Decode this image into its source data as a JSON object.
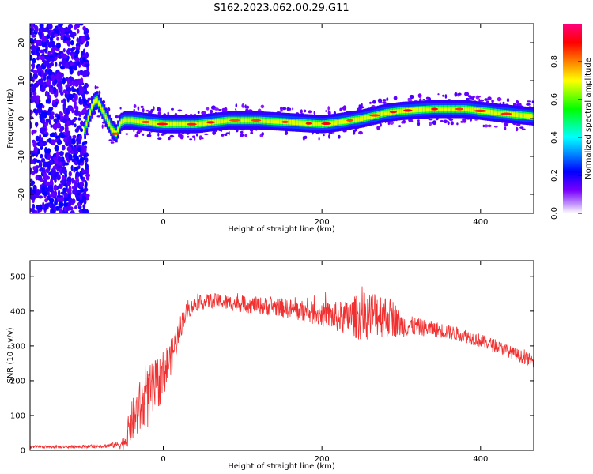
{
  "figure": {
    "title": "S162.2023.062.00.29.G11"
  },
  "chart_data": [
    {
      "type": "heatmap",
      "title": "S162.2023.062.00.29.G11",
      "xlabel": "Height of straight line (km)",
      "ylabel": "Frequency (Hz)",
      "xlim": [
        -168,
        467
      ],
      "ylim": [
        -25,
        25
      ],
      "xticks": [
        0,
        200,
        400
      ],
      "yticks": [
        -20,
        -10,
        0,
        10,
        20
      ],
      "colorbar": {
        "label": "Normalized spectral amplitude",
        "ticks": [
          0.0,
          0.2,
          0.4,
          0.6,
          0.8
        ],
        "range": [
          0,
          1
        ],
        "colors": [
          "#ffffff",
          "#7a00ff",
          "#0000ff",
          "#00ffff",
          "#00ff00",
          "#ffff00",
          "#ff8000",
          "#ff0000",
          "#ff0080"
        ]
      },
      "noise_region_x": [
        -168,
        -95
      ],
      "ridge": {
        "x": [
          -100,
          -90,
          -85,
          -80,
          -75,
          -70,
          -65,
          -60,
          -55,
          -50,
          -40,
          -20,
          0,
          40,
          80,
          120,
          160,
          200,
          220,
          250,
          280,
          300,
          340,
          380,
          420,
          467
        ],
        "y": [
          -3,
          4,
          5,
          3,
          1,
          -1,
          -3,
          -4,
          -1,
          -0.5,
          -0.5,
          -1,
          -1.5,
          -1.5,
          -0.5,
          -0.5,
          -1,
          -1.5,
          -1,
          0,
          1.5,
          2,
          2.5,
          2.5,
          1.5,
          0.5
        ]
      }
    },
    {
      "type": "line",
      "title": "",
      "xlabel": "Height of straight line (km)",
      "ylabel": "SNR (10 * v/v)",
      "xlim": [
        -168,
        467
      ],
      "ylim": [
        0,
        545
      ],
      "xticks": [
        0,
        200,
        400
      ],
      "yticks": [
        0,
        100,
        200,
        300,
        400,
        500
      ],
      "series": [
        {
          "color": "#f03030",
          "x": [
            -168,
            -120,
            -80,
            -60,
            -50,
            -40,
            -30,
            -20,
            -10,
            0,
            10,
            20,
            25,
            30,
            40,
            60,
            100,
            150,
            200,
            230,
            250,
            270,
            290,
            300,
            320,
            350,
            380,
            400,
            420,
            440,
            467
          ],
          "y": [
            10,
            10,
            12,
            15,
            20,
            80,
            120,
            150,
            180,
            220,
            270,
            340,
            380,
            400,
            420,
            430,
            420,
            410,
            390,
            380,
            385,
            395,
            380,
            360,
            355,
            345,
            330,
            315,
            300,
            280,
            255
          ],
          "spread": [
            4,
            4,
            5,
            8,
            20,
            60,
            80,
            90,
            80,
            70,
            50,
            40,
            30,
            25,
            20,
            22,
            24,
            28,
            35,
            50,
            70,
            70,
            55,
            35,
            25,
            22,
            20,
            20,
            18,
            18,
            18
          ]
        }
      ]
    }
  ]
}
